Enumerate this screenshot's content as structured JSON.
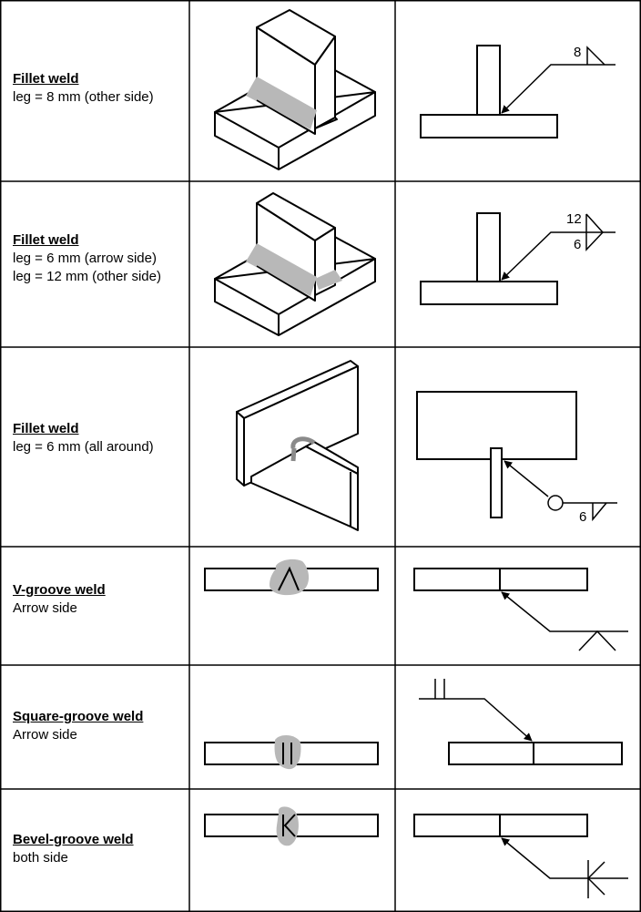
{
  "rows": [
    {
      "title": "Fillet weld",
      "lines": [
        "leg = 8 mm (other side)"
      ],
      "dims": [
        "8"
      ]
    },
    {
      "title": "Fillet weld",
      "lines": [
        "leg = 6 mm (arrow side)",
        "leg = 12 mm (other side)"
      ],
      "dims": [
        "12",
        "6"
      ]
    },
    {
      "title": "Fillet weld",
      "lines": [
        "leg = 6 mm (all around)"
      ],
      "dims": [
        "6"
      ]
    },
    {
      "title": "V-groove weld",
      "lines": [
        "Arrow side"
      ],
      "dims": []
    },
    {
      "title": "Square-groove weld",
      "lines": [
        "Arrow side"
      ],
      "dims": []
    },
    {
      "title": "Bevel-groove weld",
      "lines": [
        "both side"
      ],
      "dims": []
    }
  ],
  "colors": {
    "weld_fill": "#b8b8b8",
    "line": "#000000",
    "background": "#ffffff"
  },
  "icons": [
    "isometric-fillet-illustration",
    "fillet-weld-symbol",
    "all-around-circle-symbol",
    "v-groove-symbol",
    "square-groove-symbol",
    "bevel-groove-symbol"
  ]
}
